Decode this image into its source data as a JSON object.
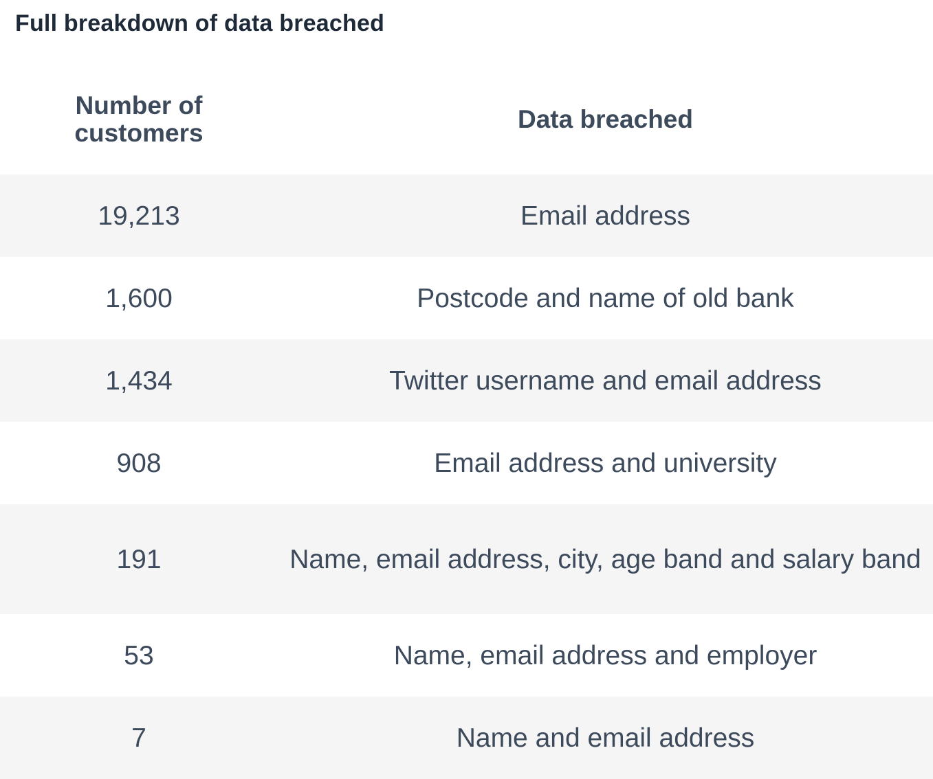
{
  "title": "Full breakdown of data breached",
  "table": {
    "headers": [
      "Number of customers",
      "Data breached"
    ],
    "rows": [
      {
        "count": "19,213",
        "data": "Email address"
      },
      {
        "count": "1,600",
        "data": "Postcode and name of old bank"
      },
      {
        "count": "1,434",
        "data": "Twitter username and email address"
      },
      {
        "count": "908",
        "data": "Email address and university"
      },
      {
        "count": "191",
        "data": "Name, email address, city, age band and salary band"
      },
      {
        "count": "53",
        "data": "Name, email address and employer"
      },
      {
        "count": "7",
        "data": "Name and email address"
      }
    ]
  }
}
